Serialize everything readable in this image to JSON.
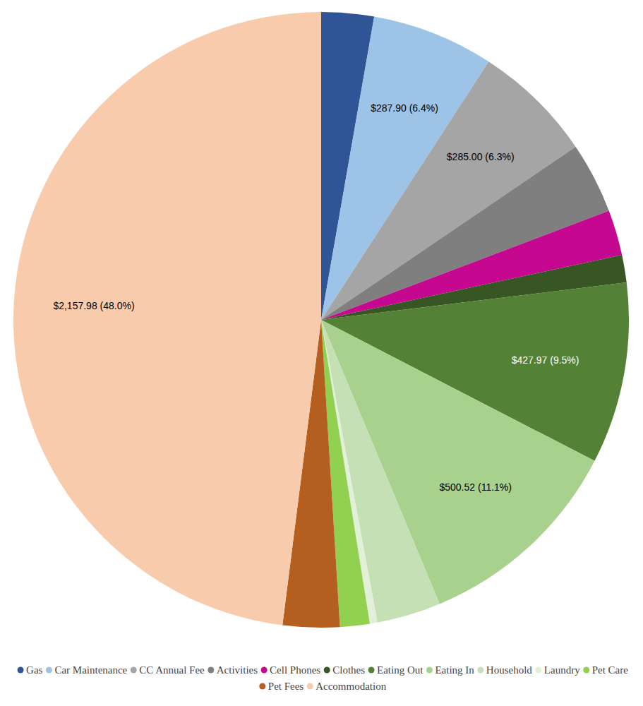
{
  "chart_data": {
    "type": "pie",
    "categories": [
      "Gas",
      "Car Maintenance",
      "CC Annual Fee",
      "Activities",
      "Cell Phones",
      "Clothes",
      "Eating Out",
      "Eating In",
      "Household",
      "Laundry",
      "Pet Care",
      "Pet Fees",
      "Accommodation"
    ],
    "values": [
      124,
      287.9,
      285,
      168,
      107,
      65,
      427.97,
      500.52,
      151,
      18,
      70,
      134,
      2157.98
    ],
    "value_labels": [
      null,
      "$287.90 (6.4%)",
      "$285.00 (6.3%)",
      null,
      null,
      null,
      "$427.97 (9.5%)",
      "$500.52 (11.1%)",
      null,
      null,
      null,
      null,
      "$2,157.98 (48.0%)"
    ],
    "colors": [
      "#2f5597",
      "#9dc3e6",
      "#a5a5a5",
      "#7f7f7f",
      "#c5088f",
      "#375623",
      "#538135",
      "#a9d18e",
      "#c5e0b4",
      "#e2f0d9",
      "#92d050",
      "#b45f20",
      "#f8cbad"
    ],
    "data_labels": true,
    "legend": "bottom"
  }
}
